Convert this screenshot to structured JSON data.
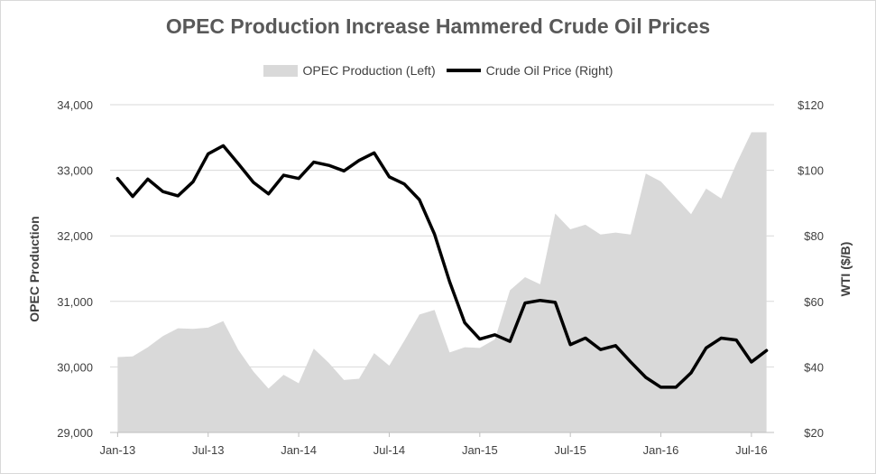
{
  "chart_data": {
    "type": "area+line",
    "title": "OPEC Production Increase Hammered Crude Oil Prices",
    "legend_position": "top",
    "grid": true,
    "x_labels": [
      "Jan-13",
      "Jul-13",
      "Jan-14",
      "Jul-14",
      "Jan-15",
      "Jul-15",
      "Jan-16",
      "Jul-16"
    ],
    "x_months": [
      "2013-01",
      "2013-02",
      "2013-03",
      "2013-04",
      "2013-05",
      "2013-06",
      "2013-07",
      "2013-08",
      "2013-09",
      "2013-10",
      "2013-11",
      "2013-12",
      "2014-01",
      "2014-02",
      "2014-03",
      "2014-04",
      "2014-05",
      "2014-06",
      "2014-07",
      "2014-08",
      "2014-09",
      "2014-10",
      "2014-11",
      "2014-12",
      "2015-01",
      "2015-02",
      "2015-03",
      "2015-04",
      "2015-05",
      "2015-06",
      "2015-07",
      "2015-08",
      "2015-09",
      "2015-10",
      "2015-11",
      "2015-12",
      "2016-01",
      "2016-02",
      "2016-03",
      "2016-04",
      "2016-05",
      "2016-06",
      "2016-07",
      "2016-08"
    ],
    "left_axis": {
      "label": "OPEC Production",
      "ylim": [
        29000,
        34000
      ],
      "tick_values": [
        29000,
        30000,
        31000,
        32000,
        33000,
        34000
      ],
      "tick_labels": [
        "29,000",
        "30,000",
        "31,000",
        "32,000",
        "33,000",
        "34,000"
      ]
    },
    "right_axis": {
      "label": "WTI ($/B)",
      "ylim": [
        20,
        120
      ],
      "tick_values": [
        20,
        40,
        60,
        80,
        100,
        120
      ],
      "tick_labels": [
        "$20",
        "$40",
        "$60",
        "$80",
        "$100",
        "$120"
      ]
    },
    "series": [
      {
        "name": "OPEC Production (Left)",
        "type": "area",
        "axis": "left",
        "color": "#d9d9d9",
        "values": [
          30150,
          30160,
          30300,
          30470,
          30590,
          30580,
          30600,
          30700,
          30260,
          29930,
          29670,
          29880,
          29750,
          30280,
          30060,
          29800,
          29820,
          30210,
          30020,
          30400,
          30800,
          30870,
          30220,
          30300,
          30290,
          30420,
          31170,
          31370,
          31260,
          32340,
          32100,
          32170,
          32020,
          32050,
          32020,
          32950,
          32830,
          32580,
          32330,
          32720,
          32570,
          33100,
          33580,
          33580
        ]
      },
      {
        "name": "Crude Oil Price (Right)",
        "type": "line",
        "axis": "right",
        "color": "#000000",
        "values": [
          97.5,
          92,
          97.3,
          93.5,
          92.2,
          96.5,
          105,
          107.5,
          102,
          96.3,
          92.8,
          98.5,
          97.5,
          102.5,
          101.5,
          99.8,
          103,
          105.3,
          98,
          95.8,
          91,
          80.5,
          66,
          53.5,
          48.5,
          49.8,
          47.8,
          59.5,
          60.3,
          59.7,
          46.8,
          48.8,
          45.3,
          46.5,
          41.5,
          36.8,
          33.8,
          33.8,
          38.2,
          45.8,
          48.8,
          48.2,
          41.5,
          45
        ]
      }
    ]
  }
}
